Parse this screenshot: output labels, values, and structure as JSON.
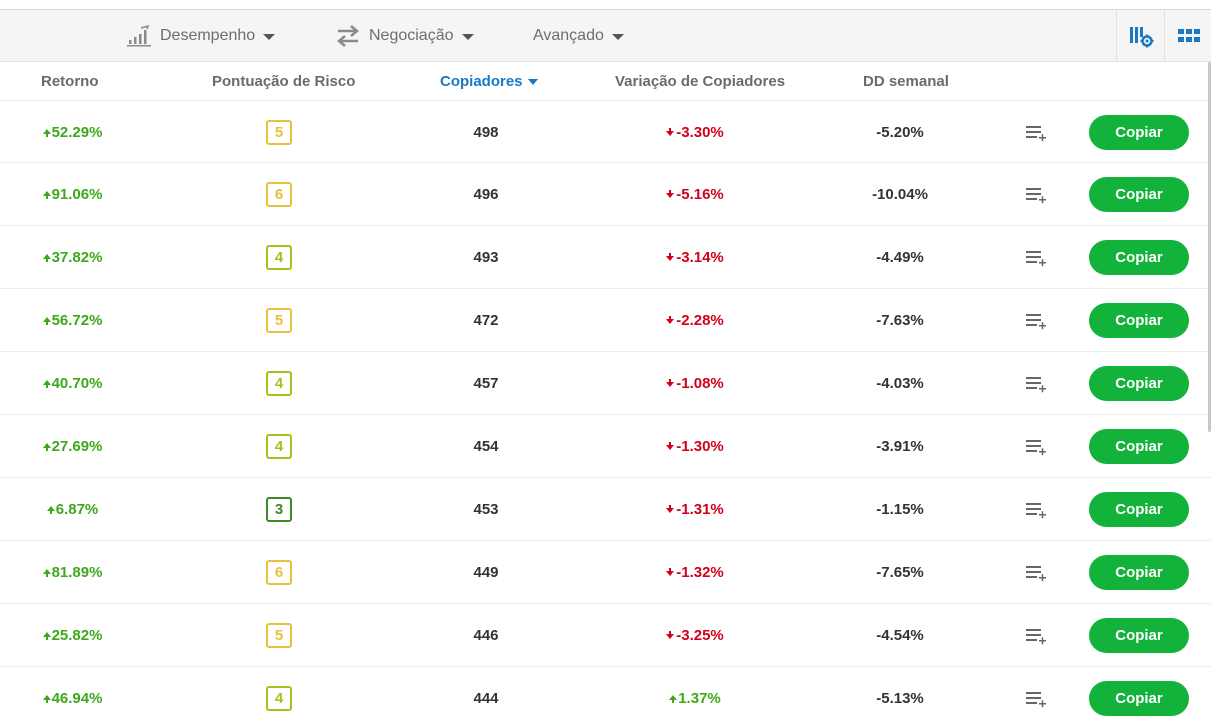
{
  "toolbar": {
    "items": [
      {
        "label": "Desempenho",
        "icon": "bar-chart-icon"
      },
      {
        "label": "Negociação",
        "icon": "exchange-arrows-icon"
      },
      {
        "label": "Avançado",
        "icon": ""
      }
    ],
    "right_buttons": [
      "column-settings-icon",
      "grid-view-icon"
    ]
  },
  "columns": [
    "Retorno",
    "Pontuação de Risco",
    "Copiadores",
    "Variação de Copiadores",
    "DD semanal"
  ],
  "active_sort_column": "Copiadores",
  "copy_label": "Copiar",
  "colors": {
    "positive": "#3ea81b",
    "negative": "#d0021b",
    "active_header": "#1a79c4",
    "copy_button": "#13b23b",
    "risk_3": "#3b8a2a",
    "risk_4": "#a2c31a",
    "risk_5": "#e8c23c",
    "risk_6": "#e8c23c"
  },
  "rows": [
    {
      "return": "52.29%",
      "risk": "5",
      "copiers": "498",
      "change": "-3.30%",
      "change_dir": "down",
      "dd": "-5.20%"
    },
    {
      "return": "91.06%",
      "risk": "6",
      "copiers": "496",
      "change": "-5.16%",
      "change_dir": "down",
      "dd": "-10.04%"
    },
    {
      "return": "37.82%",
      "risk": "4",
      "copiers": "493",
      "change": "-3.14%",
      "change_dir": "down",
      "dd": "-4.49%"
    },
    {
      "return": "56.72%",
      "risk": "5",
      "copiers": "472",
      "change": "-2.28%",
      "change_dir": "down",
      "dd": "-7.63%"
    },
    {
      "return": "40.70%",
      "risk": "4",
      "copiers": "457",
      "change": "-1.08%",
      "change_dir": "down",
      "dd": "-4.03%"
    },
    {
      "return": "27.69%",
      "risk": "4",
      "copiers": "454",
      "change": "-1.30%",
      "change_dir": "down",
      "dd": "-3.91%"
    },
    {
      "return": "6.87%",
      "risk": "3",
      "copiers": "453",
      "change": "-1.31%",
      "change_dir": "down",
      "dd": "-1.15%"
    },
    {
      "return": "81.89%",
      "risk": "6",
      "copiers": "449",
      "change": "-1.32%",
      "change_dir": "down",
      "dd": "-7.65%"
    },
    {
      "return": "25.82%",
      "risk": "5",
      "copiers": "446",
      "change": "-3.25%",
      "change_dir": "down",
      "dd": "-4.54%"
    },
    {
      "return": "46.94%",
      "risk": "4",
      "copiers": "444",
      "change": "1.37%",
      "change_dir": "up",
      "dd": "-5.13%"
    }
  ]
}
